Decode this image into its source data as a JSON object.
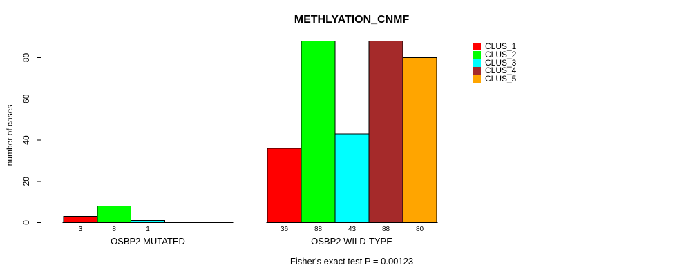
{
  "chart_data": {
    "type": "bar",
    "title": "METHLYATION_CNMF",
    "ylabel": "number of cases",
    "xlabel": "",
    "ylim": [
      0,
      88
    ],
    "yticks": [
      0,
      20,
      40,
      60,
      80
    ],
    "grid": false,
    "legend_position": "right",
    "categories": [
      "CLUS_1",
      "CLUS_2",
      "CLUS_3",
      "CLUS_4",
      "CLUS_5"
    ],
    "legend": [
      {
        "label": "CLUS_1",
        "color": "#FF0000"
      },
      {
        "label": "CLUS_2",
        "color": "#00FF00"
      },
      {
        "label": "CLUS_3",
        "color": "#00FFFF"
      },
      {
        "label": "CLUS_4",
        "color": "#A52A2A"
      },
      {
        "label": "CLUS_5",
        "color": "#FFA500"
      }
    ],
    "groups": [
      {
        "label": "OSBP2 MUTATED",
        "values": [
          3,
          8,
          1,
          0,
          0
        ]
      },
      {
        "label": "OSBP2 WILD-TYPE",
        "values": [
          36,
          88,
          43,
          88,
          80
        ]
      }
    ],
    "bar_value_labels_shown": true,
    "footnote": "Fisher's exact test P = 0.00123",
    "colors": {
      "axis": "#000000",
      "text": "#000000",
      "bar_border": "#000000"
    }
  }
}
